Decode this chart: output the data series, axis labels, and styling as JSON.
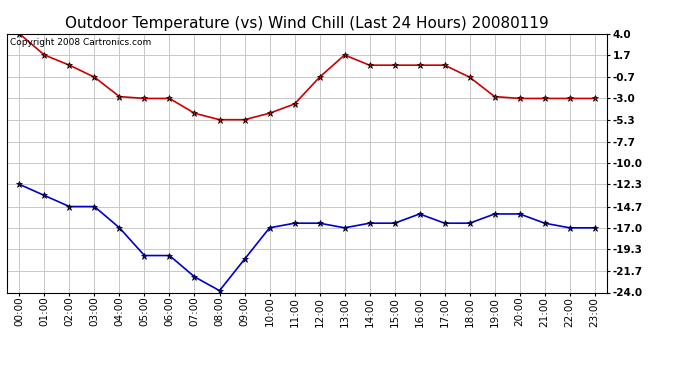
{
  "title": "Outdoor Temperature (vs) Wind Chill (Last 24 Hours) 20080119",
  "copyright_text": "Copyright 2008 Cartronics.com",
  "x_labels": [
    "00:00",
    "01:00",
    "02:00",
    "03:00",
    "04:00",
    "05:00",
    "06:00",
    "07:00",
    "08:00",
    "09:00",
    "10:00",
    "11:00",
    "12:00",
    "13:00",
    "14:00",
    "15:00",
    "16:00",
    "17:00",
    "18:00",
    "19:00",
    "20:00",
    "21:00",
    "22:00",
    "23:00"
  ],
  "y_ticks": [
    4.0,
    1.7,
    -0.7,
    -3.0,
    -5.3,
    -7.7,
    -10.0,
    -12.3,
    -14.7,
    -17.0,
    -19.3,
    -21.7,
    -24.0
  ],
  "y_min": -24.0,
  "y_max": 4.0,
  "red_data": [
    4.0,
    1.7,
    0.6,
    -0.7,
    -2.8,
    -3.0,
    -3.0,
    -4.6,
    -5.3,
    -5.3,
    -4.6,
    -3.6,
    -0.7,
    1.7,
    0.6,
    0.6,
    0.6,
    0.6,
    -0.7,
    -2.8,
    -3.0,
    -3.0,
    -3.0,
    -3.0
  ],
  "blue_data": [
    -12.3,
    -13.5,
    -14.7,
    -14.7,
    -17.0,
    -20.0,
    -20.0,
    -22.3,
    -23.8,
    -20.4,
    -17.0,
    -16.5,
    -16.5,
    -17.0,
    -16.5,
    -16.5,
    -15.5,
    -16.5,
    -16.5,
    -15.5,
    -15.5,
    -16.5,
    -17.0,
    -17.0
  ],
  "red_color": "#cc0000",
  "blue_color": "#0000cc",
  "marker_color": "#000000",
  "background_color": "#ffffff",
  "grid_color": "#c8c8c8",
  "title_fontsize": 11,
  "tick_fontsize": 7.5,
  "copyright_fontsize": 6.5
}
